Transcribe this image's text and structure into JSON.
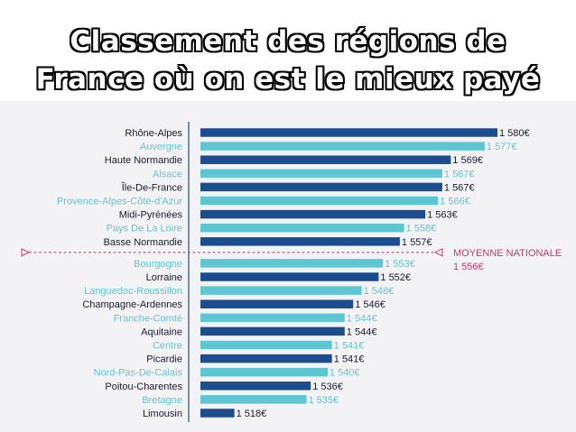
{
  "header": {
    "line1": "Classement des régions de",
    "line2": "France où on est le mieux payé"
  },
  "chart_data": {
    "type": "bar",
    "orientation": "horizontal",
    "title": "Classement des régions de France où on est le mieux payé",
    "categories": [
      "Rhône-Alpes",
      "Auvergne",
      "Haute Normandie",
      "Alsace",
      "Île-De-France",
      "Provence-Alpes-Côte-d'Azur",
      "Midi-Pyrénées",
      "Pays De La Loire",
      "Basse Normandie",
      "Bourgogne",
      "Lorraine",
      "Languedoc-Roussillon",
      "Champagne-Ardennes",
      "Franche-Comté",
      "Aquitaine",
      "Centre",
      "Picardie",
      "Nord-Pas-De-Calais",
      "Poitou-Charentes",
      "Bretagne",
      "Limousin"
    ],
    "values": [
      1580,
      1577,
      1569,
      1567,
      1567,
      1566,
      1563,
      1558,
      1557,
      1553,
      1552,
      1548,
      1546,
      1544,
      1544,
      1541,
      1541,
      1540,
      1536,
      1535,
      1518
    ],
    "value_labels": [
      "1 580€",
      "1 577€",
      "1 569€",
      "1 567€",
      "1 567€",
      "1 566€",
      "1 563€",
      "1 558€",
      "1 557€",
      "1 553€",
      "1 552€",
      "1 548€",
      "1 546€",
      "1 544€",
      "1 544€",
      "1 541€",
      "1 541€",
      "1 540€",
      "1 536€",
      "1 535€",
      "1 518€"
    ],
    "highlighted": [
      false,
      true,
      false,
      true,
      false,
      true,
      false,
      true,
      false,
      true,
      false,
      true,
      false,
      true,
      false,
      true,
      false,
      true,
      false,
      true,
      false
    ],
    "reference_line": {
      "label": "MOYENNE NATIONALE",
      "value": 1556,
      "value_label": "1 556€"
    },
    "xlim": [
      1510,
      1580
    ],
    "colors": {
      "dark": "#1c4d8e",
      "light": "#5ec5d2",
      "dark_text": "#1a1a2e",
      "light_text": "#5ec5d2",
      "reference": "#c53a6d"
    }
  }
}
